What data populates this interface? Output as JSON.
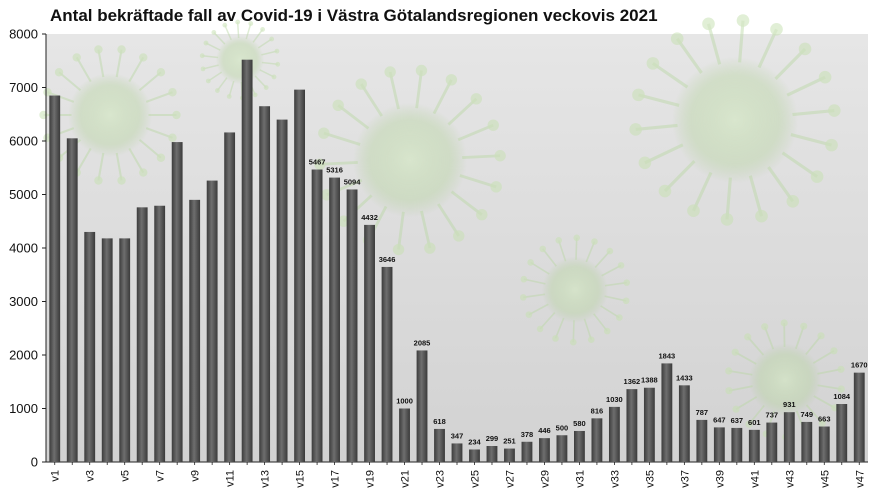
{
  "chart_data": {
    "type": "bar",
    "title": "Antal bekräftade fall av Covid-19 i Västra Götalandsregionen veckovis 2021",
    "xlabel": "",
    "ylabel": "",
    "ylim": [
      0,
      8000
    ],
    "yticks": [
      0,
      1000,
      2000,
      3000,
      4000,
      5000,
      6000,
      7000,
      8000
    ],
    "grid": false,
    "categories": [
      "v1",
      "v2",
      "v3",
      "v4",
      "v5",
      "v6",
      "v7",
      "v8",
      "v9",
      "v10",
      "v11",
      "v12",
      "v13",
      "v14",
      "v15",
      "v16",
      "v17",
      "v18",
      "v19",
      "v20",
      "v21",
      "v22",
      "v23",
      "v24",
      "v25",
      "v26",
      "v27",
      "v28",
      "v29",
      "v30",
      "v31",
      "v32",
      "v33",
      "v34",
      "v35",
      "v36",
      "v37",
      "v38",
      "v39",
      "v40",
      "v41",
      "v42",
      "v43",
      "v44",
      "v45",
      "v46",
      "v47"
    ],
    "shown_category_labels": [
      "v1",
      "v3",
      "v5",
      "v7",
      "v9",
      "v11",
      "v13",
      "v15",
      "v17",
      "v19",
      "v21",
      "v23",
      "v25",
      "v27",
      "v29",
      "v31",
      "v33",
      "v35",
      "v37",
      "v39",
      "v41",
      "v43",
      "v45",
      "v47"
    ],
    "values": [
      6850,
      6050,
      4300,
      4180,
      4180,
      4760,
      4790,
      5980,
      4900,
      5260,
      6160,
      7520,
      6650,
      6400,
      6960,
      5467,
      5316,
      5094,
      4432,
      3646,
      1000,
      2085,
      618,
      347,
      234,
      299,
      251,
      378,
      446,
      500,
      580,
      816,
      1030,
      1362,
      1388,
      1843,
      1433,
      787,
      647,
      637,
      601,
      737,
      931,
      749,
      663,
      1084,
      1670
    ],
    "data_labels": [
      null,
      null,
      null,
      null,
      null,
      null,
      null,
      null,
      null,
      null,
      null,
      null,
      null,
      null,
      null,
      "5467",
      "5316",
      "5094",
      "4432",
      "3646",
      "1000",
      "2085",
      "618",
      "347",
      "234",
      "299",
      "251",
      "378",
      "446",
      "500",
      "580",
      "816",
      "1030",
      "1362",
      "1388",
      "1843",
      "1433",
      "787",
      "647",
      "637",
      "601",
      "737",
      "931",
      "749",
      "663",
      "1084",
      "1670"
    ],
    "colors": {
      "bar": "#4a4a4a",
      "bar_highlight": "#7a7a7a",
      "background": "#dcdcdc",
      "virus": "#b9d7a4"
    }
  }
}
